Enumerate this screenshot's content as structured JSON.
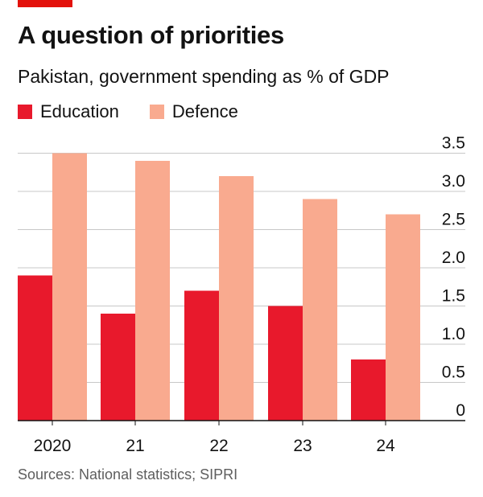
{
  "title": "A question of priorities",
  "subtitle": "Pakistan, government spending as % of GDP",
  "legend": [
    {
      "label": "Education",
      "color": "#E8192C"
    },
    {
      "label": "Defence",
      "color": "#F9AA8F"
    }
  ],
  "source": "Sources: National statistics; SIPRI",
  "chart_data": {
    "type": "bar",
    "categories": [
      "2020",
      "21",
      "22",
      "23",
      "24"
    ],
    "series": [
      {
        "name": "Education",
        "values": [
          1.9,
          1.4,
          1.7,
          1.5,
          0.8
        ],
        "color": "#E8192C"
      },
      {
        "name": "Defence",
        "values": [
          3.5,
          3.4,
          3.2,
          2.9,
          2.7
        ],
        "color": "#F9AA8F"
      }
    ],
    "yticks": [
      "0",
      "0.5",
      "1.0",
      "1.5",
      "2.0",
      "2.5",
      "3.0",
      "3.5"
    ],
    "ylim": [
      0,
      3.5
    ],
    "grid": true,
    "y_axis_side": "right",
    "xlabel": "",
    "ylabel": ""
  }
}
